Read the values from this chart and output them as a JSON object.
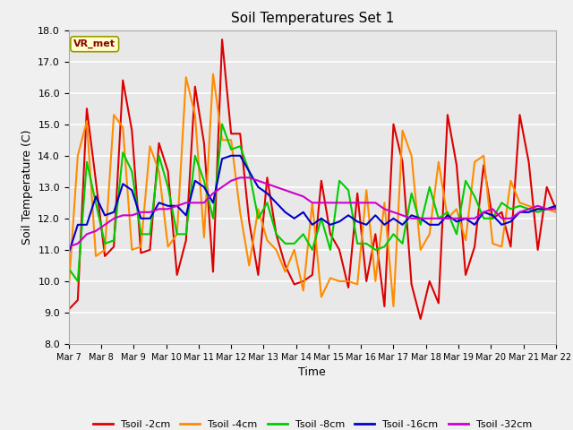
{
  "title": "Soil Temperatures Set 1",
  "xlabel": "Time",
  "ylabel": "Soil Temperature (C)",
  "ylim": [
    8.0,
    18.0
  ],
  "yticks": [
    8.0,
    9.0,
    10.0,
    11.0,
    12.0,
    13.0,
    14.0,
    15.0,
    16.0,
    17.0,
    18.0
  ],
  "bg_color": "#e8e8e8",
  "grid_color": "#ffffff",
  "annotation_text": "VR_met",
  "annotation_color": "#8b0000",
  "annotation_bg": "#ffffcc",
  "legend_entries": [
    "Tsoil -2cm",
    "Tsoil -4cm",
    "Tsoil -8cm",
    "Tsoil -16cm",
    "Tsoil -32cm"
  ],
  "line_colors": [
    "#dd0000",
    "#ff8c00",
    "#00cc00",
    "#0000cc",
    "#cc00cc"
  ],
  "xtick_labels": [
    "Mar 7",
    "Mar 8",
    "Mar 9",
    "Mar 10",
    "Mar 11",
    "Mar 12",
    "Mar 13",
    "Mar 14",
    "Mar 15",
    "Mar 16",
    "Mar 17",
    "Mar 18",
    "Mar 19",
    "Mar 20",
    "Mar 21",
    "Mar 22"
  ],
  "t2cm": [
    9.1,
    9.4,
    15.5,
    13.2,
    10.8,
    11.1,
    16.4,
    14.8,
    10.9,
    11.0,
    14.4,
    13.5,
    10.2,
    11.3,
    16.2,
    14.4,
    10.3,
    17.7,
    14.7,
    14.7,
    11.9,
    10.2,
    13.3,
    11.5,
    10.5,
    9.9,
    10.0,
    10.2,
    13.2,
    11.5,
    11.0,
    9.8,
    12.8,
    10.0,
    11.5,
    9.2,
    15.0,
    13.8,
    9.9,
    8.8,
    10.0,
    9.3,
    15.3,
    13.7,
    10.2,
    11.1,
    13.7,
    12.0,
    12.2,
    11.1,
    15.3,
    13.8,
    11.0,
    13.0,
    12.3
  ],
  "t4cm": [
    9.8,
    14.0,
    15.1,
    10.8,
    11.0,
    15.3,
    14.9,
    11.0,
    11.1,
    14.3,
    13.5,
    11.1,
    11.5,
    16.5,
    15.3,
    11.4,
    16.6,
    14.5,
    14.5,
    12.2,
    10.5,
    12.3,
    11.3,
    11.0,
    10.3,
    11.0,
    9.7,
    12.5,
    9.5,
    10.1,
    10.0,
    10.0,
    9.9,
    12.9,
    10.0,
    12.5,
    9.2,
    14.8,
    14.0,
    11.0,
    11.5,
    13.8,
    12.0,
    12.3,
    11.3,
    13.8,
    14.0,
    11.2,
    11.1,
    13.2,
    12.5,
    12.4,
    12.3,
    12.3,
    12.2
  ],
  "t8cm": [
    10.4,
    10.0,
    13.8,
    12.5,
    11.2,
    11.3,
    14.1,
    13.5,
    11.5,
    11.5,
    14.0,
    13.0,
    11.5,
    11.5,
    14.0,
    13.2,
    12.0,
    15.0,
    14.2,
    14.3,
    13.5,
    12.0,
    12.5,
    11.5,
    11.2,
    11.2,
    11.5,
    11.0,
    12.0,
    11.0,
    13.2,
    12.9,
    11.2,
    11.2,
    11.0,
    11.1,
    11.5,
    11.2,
    12.8,
    11.8,
    13.0,
    12.0,
    12.2,
    11.5,
    13.2,
    12.7,
    12.0,
    12.0,
    12.5,
    12.3,
    12.4,
    12.3,
    12.2,
    12.3,
    12.4
  ],
  "t16cm": [
    10.9,
    11.8,
    11.8,
    12.7,
    12.1,
    12.2,
    13.1,
    12.9,
    12.0,
    12.0,
    12.5,
    12.4,
    12.4,
    12.1,
    13.2,
    13.0,
    12.5,
    13.9,
    14.0,
    14.0,
    13.5,
    13.0,
    12.8,
    12.5,
    12.2,
    12.0,
    12.2,
    11.8,
    12.0,
    11.8,
    11.9,
    12.1,
    11.9,
    11.8,
    12.1,
    11.8,
    12.0,
    11.8,
    12.1,
    12.0,
    11.8,
    11.8,
    12.1,
    11.9,
    12.0,
    11.8,
    12.2,
    12.1,
    11.8,
    11.9,
    12.2,
    12.2,
    12.3,
    12.3,
    12.4
  ],
  "t32cm": [
    11.1,
    11.2,
    11.5,
    11.6,
    11.8,
    12.0,
    12.1,
    12.1,
    12.2,
    12.2,
    12.3,
    12.3,
    12.4,
    12.5,
    12.5,
    12.5,
    12.8,
    13.0,
    13.2,
    13.3,
    13.3,
    13.2,
    13.1,
    13.0,
    12.9,
    12.8,
    12.7,
    12.5,
    12.5,
    12.5,
    12.5,
    12.5,
    12.5,
    12.5,
    12.5,
    12.3,
    12.2,
    12.1,
    12.0,
    12.0,
    12.0,
    12.0,
    12.0,
    12.0,
    12.0,
    12.0,
    12.2,
    12.3,
    12.0,
    12.0,
    12.2,
    12.3,
    12.4,
    12.3,
    12.3
  ]
}
